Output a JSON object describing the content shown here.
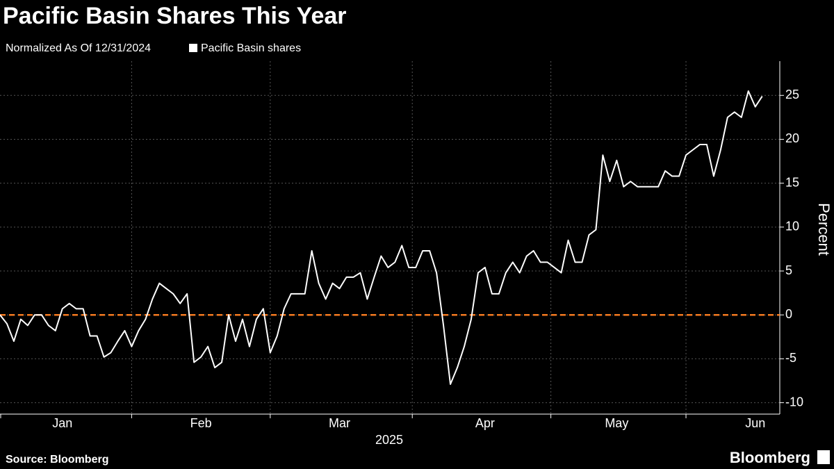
{
  "chart_data": {
    "type": "line",
    "title": "Pacific Basin Shares This Year",
    "subtitle": "Normalized As Of 12/31/2024",
    "source": "Source: Bloomberg",
    "brand": "Bloomberg",
    "ylabel": "Percent",
    "xlabel": "2025",
    "categories": [
      null,
      null,
      null,
      null,
      null,
      null,
      null,
      null,
      null,
      "Jan",
      null,
      null,
      null,
      null,
      null,
      null,
      null,
      null,
      null,
      null,
      null,
      null,
      null,
      null,
      null,
      null,
      null,
      null,
      null,
      "Feb",
      null,
      null,
      null,
      null,
      null,
      null,
      null,
      null,
      null,
      null,
      null,
      null,
      null,
      null,
      null,
      null,
      null,
      null,
      null,
      "Mar",
      null,
      null,
      null,
      null,
      null,
      null,
      null,
      null,
      null,
      null,
      null,
      null,
      null,
      null,
      null,
      null,
      null,
      null,
      null,
      null,
      "Apr",
      null,
      null,
      null,
      null,
      null,
      null,
      null,
      null,
      null,
      null,
      null,
      null,
      null,
      null,
      null,
      null,
      null,
      null,
      "May",
      null,
      null,
      null,
      null,
      null,
      null,
      null,
      null,
      null,
      null,
      null,
      null,
      null,
      null,
      null,
      null,
      null,
      null,
      null,
      "Jun",
      null
    ],
    "series": [
      {
        "name": "Pacific Basin shares",
        "color": "#ffffff",
        "values": [
          0,
          -1,
          -3,
          -0.5,
          -1.2,
          0,
          0,
          -1.2,
          -1.8,
          0.7,
          1.3,
          0.7,
          0.7,
          -2.4,
          -2.4,
          -4.8,
          -4.3,
          -3,
          -1.8,
          -3.6,
          -1.8,
          -0.5,
          1.8,
          3.6,
          3,
          2.4,
          1.3,
          2.4,
          -5.4,
          -4.8,
          -3.6,
          -6,
          -5.4,
          0,
          -3,
          -0.5,
          -3.6,
          -0.5,
          0.7,
          -4.3,
          -2.4,
          0.7,
          2.4,
          2.4,
          2.4,
          7.3,
          3.6,
          1.8,
          3.6,
          3,
          4.3,
          4.3,
          4.8,
          1.8,
          4.3,
          6.7,
          5.4,
          6,
          7.9,
          5.4,
          5.4,
          7.3,
          7.3,
          4.8,
          -1.2,
          -7.9,
          -6,
          -3.6,
          -0.5,
          4.8,
          5.4,
          2.4,
          2.4,
          4.8,
          6,
          4.8,
          6.7,
          7.3,
          6,
          6,
          5.4,
          4.8,
          8.5,
          6,
          6,
          9.1,
          9.7,
          18.2,
          15.2,
          17.6,
          14.6,
          15.2,
          14.6,
          14.6,
          14.6,
          14.6,
          16.4,
          15.8,
          15.8,
          18.2,
          18.8,
          19.4,
          19.4,
          15.8,
          18.8,
          22.5,
          23.1,
          22.5,
          25.5,
          23.7,
          24.9
        ]
      }
    ],
    "reference_line": {
      "value": 0,
      "color": "#f47a20"
    },
    "ylim": [
      -11.3,
      28.9
    ],
    "yticks": [
      -10,
      -5,
      0,
      5,
      10,
      15,
      20,
      25
    ],
    "grid": true
  }
}
